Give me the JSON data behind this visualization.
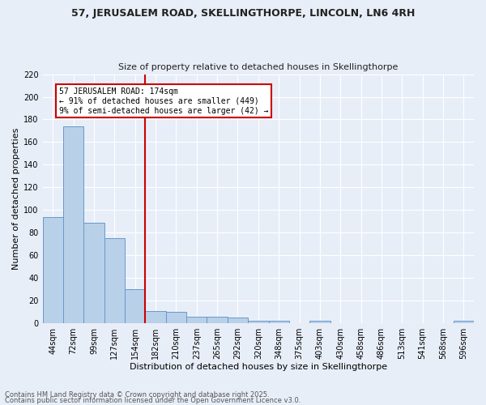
{
  "title1": "57, JERUSALEM ROAD, SKELLINGTHORPE, LINCOLN, LN6 4RH",
  "title2": "Size of property relative to detached houses in Skellingthorpe",
  "xlabel": "Distribution of detached houses by size in Skellingthorpe",
  "ylabel": "Number of detached properties",
  "categories": [
    "44sqm",
    "72sqm",
    "99sqm",
    "127sqm",
    "154sqm",
    "182sqm",
    "210sqm",
    "237sqm",
    "265sqm",
    "292sqm",
    "320sqm",
    "348sqm",
    "375sqm",
    "403sqm",
    "430sqm",
    "458sqm",
    "486sqm",
    "513sqm",
    "541sqm",
    "568sqm",
    "596sqm"
  ],
  "values": [
    94,
    174,
    89,
    75,
    30,
    11,
    10,
    6,
    6,
    5,
    2,
    2,
    0,
    2,
    0,
    0,
    0,
    0,
    0,
    0,
    2
  ],
  "bar_color": "#b8d0e8",
  "bar_edge_color": "#6699cc",
  "vline_color": "#cc0000",
  "annotation_text": "57 JERUSALEM ROAD: 174sqm\n← 91% of detached houses are smaller (449)\n9% of semi-detached houses are larger (42) →",
  "annotation_box_color": "#ffffff",
  "annotation_box_edge_color": "#cc0000",
  "background_color": "#e8eef8",
  "grid_color": "#ffffff",
  "footer1": "Contains HM Land Registry data © Crown copyright and database right 2025.",
  "footer2": "Contains public sector information licensed under the Open Government Licence v3.0.",
  "ylim": [
    0,
    220
  ],
  "yticks": [
    0,
    20,
    40,
    60,
    80,
    100,
    120,
    140,
    160,
    180,
    200,
    220
  ],
  "title1_fontsize": 9,
  "title2_fontsize": 8,
  "xlabel_fontsize": 8,
  "ylabel_fontsize": 8,
  "tick_fontsize": 7,
  "annotation_fontsize": 7,
  "footer_fontsize": 6
}
